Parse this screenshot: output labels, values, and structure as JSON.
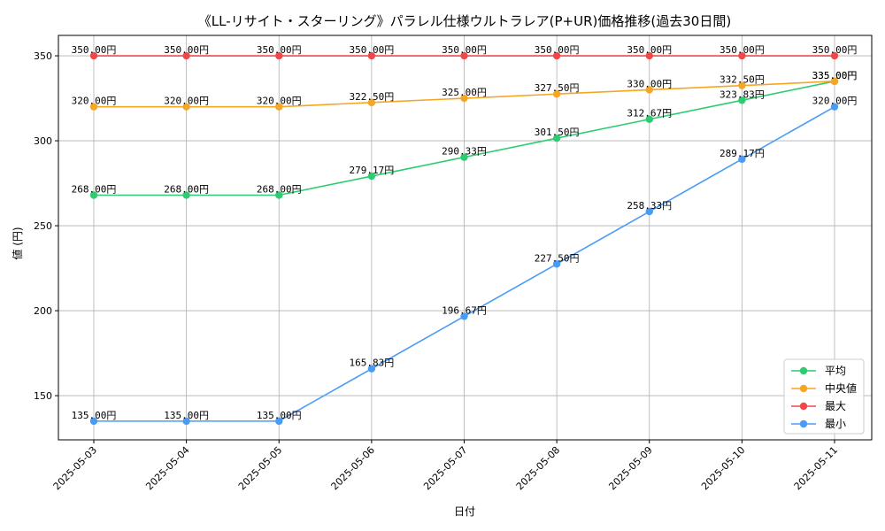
{
  "chart_data": {
    "type": "line",
    "title": "《LL-リサイト・スターリング》パラレル仕様ウルトラレア(P+UR)価格推移(過去30日間)",
    "xlabel": "日付",
    "ylabel": "値 (円)",
    "categories": [
      "2025-05-03",
      "2025-05-04",
      "2025-05-05",
      "2025-05-06",
      "2025-05-07",
      "2025-05-08",
      "2025-05-09",
      "2025-05-10",
      "2025-05-11"
    ],
    "ylim": [
      124,
      362
    ],
    "yticks": [
      150,
      200,
      250,
      300,
      350
    ],
    "grid": true,
    "legend_position": "lower-right",
    "label_suffix": "円",
    "series": [
      {
        "name": "平均",
        "color": "#2ecc71",
        "values": [
          268.0,
          268.0,
          268.0,
          279.17,
          290.33,
          301.5,
          312.67,
          323.83,
          335.0
        ]
      },
      {
        "name": "中央値",
        "color": "#f5a623",
        "values": [
          320.0,
          320.0,
          320.0,
          322.5,
          325.0,
          327.5,
          330.0,
          332.5,
          335.0
        ]
      },
      {
        "name": "最大",
        "color": "#f04848",
        "values": [
          350.0,
          350.0,
          350.0,
          350.0,
          350.0,
          350.0,
          350.0,
          350.0,
          350.0
        ]
      },
      {
        "name": "最小",
        "color": "#4a9bf5",
        "values": [
          135.0,
          135.0,
          135.0,
          165.83,
          196.67,
          227.5,
          258.33,
          289.17,
          320.0
        ]
      }
    ]
  }
}
